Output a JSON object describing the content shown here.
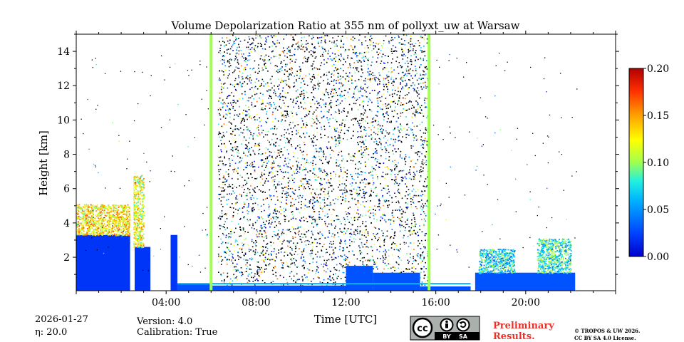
{
  "chart_data": {
    "type": "heatmap",
    "title": "Volume Depolarization Ratio at 355 nm of pollyxt_uw at Warsaw",
    "xlabel": "Time [UTC]",
    "ylabel": "Height [km]",
    "xlim": [
      0,
      24
    ],
    "ylim": [
      0.05,
      15
    ],
    "x_ticks": [
      {
        "value": 4,
        "label": "04:00"
      },
      {
        "value": 8,
        "label": "08:00"
      },
      {
        "value": 12,
        "label": "12:00"
      },
      {
        "value": 16,
        "label": "16:00"
      },
      {
        "value": 20,
        "label": "20:00"
      }
    ],
    "y_ticks": [
      {
        "value": 2,
        "label": "2"
      },
      {
        "value": 4,
        "label": "4"
      },
      {
        "value": 6,
        "label": "6"
      },
      {
        "value": 8,
        "label": "8"
      },
      {
        "value": 10,
        "label": "10"
      },
      {
        "value": 12,
        "label": "12"
      },
      {
        "value": 14,
        "label": "14"
      }
    ],
    "colorbar": {
      "colormap": "jet",
      "min": 0.0,
      "max": 0.2,
      "ticks": [
        {
          "value": 0.0,
          "label": "0.00"
        },
        {
          "value": 0.05,
          "label": "0.05"
        },
        {
          "value": 0.1,
          "label": "0.10"
        },
        {
          "value": 0.15,
          "label": "0.15"
        },
        {
          "value": 0.2,
          "label": "0.20"
        }
      ]
    },
    "noisy_period_hours": [
      6.3,
      15.7
    ],
    "calibration_lines_hours": [
      6.0,
      15.7
    ],
    "boundary_layer": [
      {
        "start": 0.0,
        "end": 2.4,
        "top_km": 3.3,
        "value": 0.02
      },
      {
        "start": 2.6,
        "end": 3.3,
        "top_km": 2.6,
        "value": 0.02
      },
      {
        "start": 4.2,
        "end": 4.5,
        "top_km": 3.3,
        "value": 0.02
      },
      {
        "start": 4.5,
        "end": 6.0,
        "top_km": 0.45,
        "value": 0.03
      },
      {
        "start": 6.0,
        "end": 12.0,
        "top_km": 0.35,
        "value": 0.03
      },
      {
        "start": 12.0,
        "end": 13.2,
        "top_km": 1.5,
        "value": 0.03
      },
      {
        "start": 13.2,
        "end": 15.3,
        "top_km": 1.1,
        "value": 0.03
      },
      {
        "start": 15.3,
        "end": 17.6,
        "top_km": 0.3,
        "value": 0.03
      },
      {
        "start": 17.6,
        "end": 22.2,
        "top_km": 1.1,
        "value": 0.03
      }
    ],
    "aerosol_layers": [
      {
        "start": 0.0,
        "end": 2.4,
        "bottom_km": 3.3,
        "top_km": 5.1,
        "value": 0.13
      },
      {
        "start": 2.4,
        "end": 3.0,
        "bottom_km": 2.6,
        "top_km": 6.8,
        "value": 0.12
      },
      {
        "start": 17.9,
        "end": 19.5,
        "bottom_km": 1.1,
        "top_km": 2.5,
        "value": 0.07
      },
      {
        "start": 20.5,
        "end": 22.0,
        "bottom_km": 1.1,
        "top_km": 3.1,
        "value": 0.08
      }
    ],
    "data_gaps_hours": [
      [
        2.4,
        2.55
      ],
      [
        17.55,
        17.75
      ],
      [
        22.35,
        24.0
      ]
    ]
  },
  "info": {
    "date": "2026-01-27",
    "eta_label": "η: 20.0",
    "version": "Version: 4.0",
    "calibration": "Calibration: True",
    "preliminary_line1": "Preliminary",
    "preliminary_line2": "Results.",
    "copyright_line1": "© TROPOS & UW 2026.",
    "copyright_line2": "CC BY SA 4.0 License.",
    "license_by": "BY",
    "license_sa": "SA",
    "license_cc": "cc"
  },
  "colors": {
    "preliminary": "#e8322a",
    "license_badge": "#aab0ab",
    "license_dark": "#333333"
  }
}
